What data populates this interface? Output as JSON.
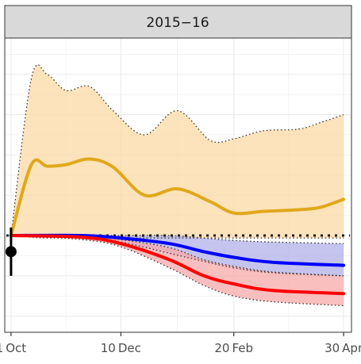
{
  "chart_data": {
    "type": "line",
    "panel_title": "2015−16",
    "x_ticks": [
      {
        "label": "1 Oct",
        "date": "2015-10-01"
      },
      {
        "label": "10 Dec",
        "date": "2015-12-10"
      },
      {
        "label": "20 Feb",
        "date": "2016-02-20"
      },
      {
        "label": "30 Apr",
        "date": "2016-04-30"
      }
    ],
    "xlim": [
      "2015-09-27",
      "2016-05-05"
    ],
    "ylim": [
      -1.2,
      2.45
    ],
    "grid": true,
    "y_reference_line": 0,
    "observed_point": {
      "x": "2015-10-01",
      "y": -0.2,
      "low": -0.5,
      "high": 0.1,
      "color": "#000000"
    },
    "series": [
      {
        "color": "#e0a81c",
        "band_color": "#fbd9a4",
        "points": [
          {
            "x": "2015-10-01",
            "y": 0.0,
            "low": 0.0,
            "high": 0.0
          },
          {
            "x": "2015-10-14",
            "y": 0.88,
            "low": -0.02,
            "high": 1.95
          },
          {
            "x": "2015-10-24",
            "y": 0.86,
            "low": -0.03,
            "high": 2.0
          },
          {
            "x": "2015-11-05",
            "y": 0.88,
            "low": -0.03,
            "high": 1.8
          },
          {
            "x": "2015-11-20",
            "y": 0.95,
            "low": -0.03,
            "high": 1.85
          },
          {
            "x": "2015-12-05",
            "y": 0.85,
            "low": -0.03,
            "high": 1.55
          },
          {
            "x": "2015-12-25",
            "y": 0.5,
            "low": -0.03,
            "high": 1.25
          },
          {
            "x": "2016-01-15",
            "y": 0.58,
            "low": -0.03,
            "high": 1.55
          },
          {
            "x": "2016-02-05",
            "y": 0.42,
            "low": -0.03,
            "high": 1.18
          },
          {
            "x": "2016-02-20",
            "y": 0.28,
            "low": -0.03,
            "high": 1.2
          },
          {
            "x": "2016-03-10",
            "y": 0.3,
            "low": -0.03,
            "high": 1.3
          },
          {
            "x": "2016-04-01",
            "y": 0.32,
            "low": -0.03,
            "high": 1.32
          },
          {
            "x": "2016-04-15",
            "y": 0.35,
            "low": -0.03,
            "high": 1.4
          },
          {
            "x": "2016-04-30",
            "y": 0.45,
            "low": -0.03,
            "high": 1.5
          }
        ]
      },
      {
        "color": "#0000ff",
        "band_color": "#b0b0e8",
        "points": [
          {
            "x": "2015-10-01",
            "y": 0.0,
            "low": 0.0,
            "high": 0.0
          },
          {
            "x": "2015-11-15",
            "y": 0.0,
            "low": -0.02,
            "high": 0.0
          },
          {
            "x": "2015-12-10",
            "y": -0.03,
            "low": -0.08,
            "high": 0.0
          },
          {
            "x": "2016-01-10",
            "y": -0.1,
            "low": -0.22,
            "high": 0.0
          },
          {
            "x": "2016-02-01",
            "y": -0.2,
            "low": -0.32,
            "high": -0.03
          },
          {
            "x": "2016-02-20",
            "y": -0.27,
            "low": -0.4,
            "high": -0.06
          },
          {
            "x": "2016-03-15",
            "y": -0.33,
            "low": -0.46,
            "high": -0.08
          },
          {
            "x": "2016-04-30",
            "y": -0.37,
            "low": -0.5,
            "high": -0.1
          }
        ]
      },
      {
        "color": "#ff0000",
        "band_color": "#f7a8a8",
        "points": [
          {
            "x": "2015-10-01",
            "y": 0.0,
            "low": 0.0,
            "high": 0.0
          },
          {
            "x": "2015-11-15",
            "y": -0.02,
            "low": -0.05,
            "high": 0.0
          },
          {
            "x": "2015-12-10",
            "y": -0.1,
            "low": -0.14,
            "high": -0.05
          },
          {
            "x": "2016-01-10",
            "y": -0.3,
            "low": -0.4,
            "high": -0.15
          },
          {
            "x": "2016-02-01",
            "y": -0.5,
            "low": -0.62,
            "high": -0.3
          },
          {
            "x": "2016-02-20",
            "y": -0.6,
            "low": -0.75,
            "high": -0.38
          },
          {
            "x": "2016-03-15",
            "y": -0.68,
            "low": -0.82,
            "high": -0.45
          },
          {
            "x": "2016-04-30",
            "y": -0.72,
            "low": -0.87,
            "high": -0.5
          }
        ]
      }
    ]
  }
}
